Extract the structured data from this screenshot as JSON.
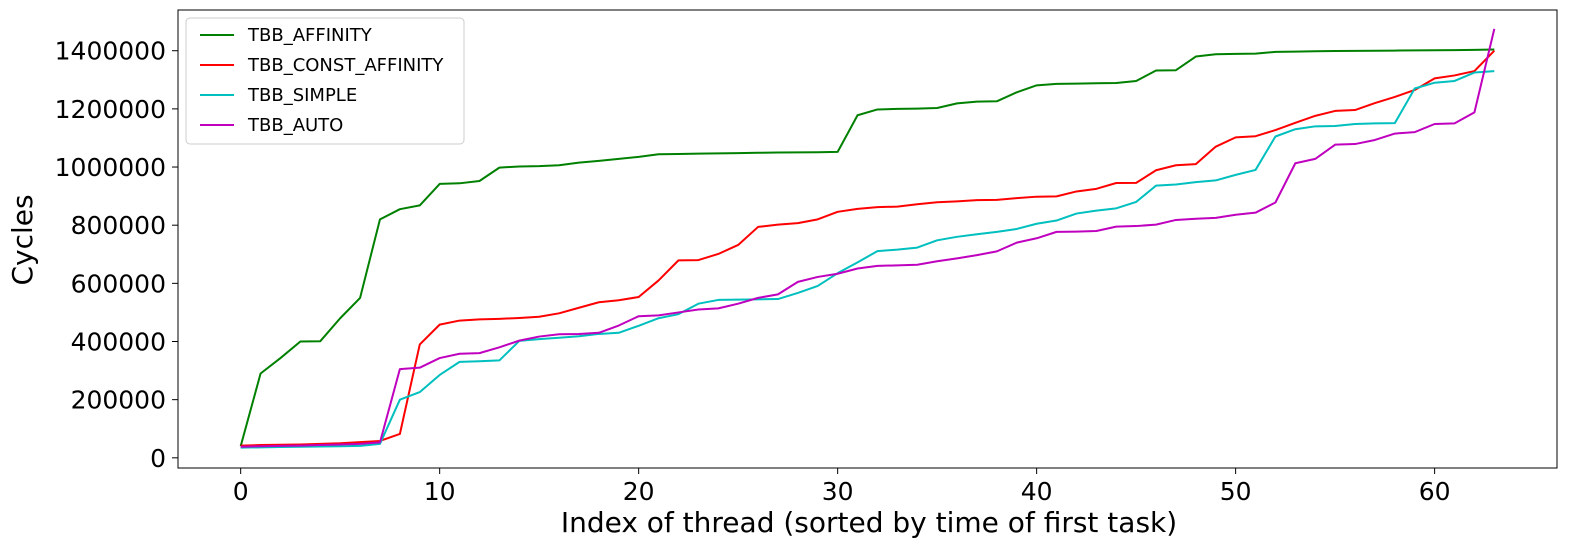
{
  "chart_data": {
    "type": "line",
    "title": "",
    "xlabel": "Index of thread (sorted by time of first task)",
    "ylabel": "Cycles",
    "xlim": [
      -3.15,
      66.15
    ],
    "ylim": [
      -35000,
      1540000
    ],
    "xticks": [
      0,
      10,
      20,
      30,
      40,
      50,
      60
    ],
    "yticks": [
      0,
      200000,
      400000,
      600000,
      800000,
      1000000,
      1200000,
      1400000
    ],
    "xtick_labels": [
      "0",
      "10",
      "20",
      "30",
      "40",
      "50",
      "60"
    ],
    "ytick_labels": [
      "0",
      "200000",
      "400000",
      "600000",
      "800000",
      "1000000",
      "1200000",
      "1400000"
    ],
    "grid": false,
    "legend_position": "upper-left",
    "x": [
      0,
      1,
      2,
      3,
      4,
      5,
      6,
      7,
      8,
      9,
      10,
      11,
      12,
      13,
      14,
      15,
      16,
      17,
      18,
      19,
      20,
      21,
      22,
      23,
      24,
      25,
      26,
      27,
      28,
      29,
      30,
      31,
      32,
      33,
      34,
      35,
      36,
      37,
      38,
      39,
      40,
      41,
      42,
      43,
      44,
      45,
      46,
      47,
      48,
      49,
      50,
      51,
      52,
      53,
      54,
      55,
      56,
      57,
      58,
      59,
      60,
      61,
      62,
      63
    ],
    "series": [
      {
        "name": "TBB_AFFINITY",
        "color": "#008000",
        "values": [
          40000,
          290000,
          343000,
          400000,
          401000,
          480000,
          550000,
          820000,
          855000,
          868000,
          942000,
          944000,
          952000,
          998000,
          1002000,
          1003000,
          1006000,
          1015000,
          1021000,
          1028000,
          1035000,
          1044000,
          1045000,
          1046000,
          1047000,
          1048000,
          1049000,
          1050000,
          1050500,
          1051000,
          1052000,
          1178000,
          1198000,
          1200000,
          1201000,
          1203000,
          1219000,
          1225000,
          1226000,
          1257000,
          1281000,
          1286000,
          1287000,
          1288000,
          1289000,
          1296000,
          1332000,
          1333000,
          1380000,
          1388000,
          1389000,
          1390000,
          1396000,
          1397000,
          1398000,
          1399000,
          1399500,
          1400000,
          1400500,
          1401000,
          1401500,
          1402000,
          1403000,
          1404000
        ]
      },
      {
        "name": "TBB_CONST_AFFINITY",
        "color": "#ff0000",
        "values": [
          42000,
          44000,
          45000,
          46000,
          48000,
          50000,
          54000,
          58000,
          82000,
          390000,
          458000,
          472000,
          476000,
          478000,
          481000,
          485000,
          497000,
          516000,
          535000,
          542000,
          553000,
          610000,
          679000,
          680000,
          701000,
          732000,
          794000,
          802000,
          807000,
          820000,
          846000,
          856000,
          862000,
          864000,
          872000,
          879000,
          882000,
          886000,
          887000,
          893000,
          898000,
          899000,
          916000,
          925000,
          945000,
          945500,
          989000,
          1006000,
          1010000,
          1070000,
          1102000,
          1106000,
          1127000,
          1152000,
          1176000,
          1193000,
          1196000,
          1220000,
          1241000,
          1265000,
          1305000,
          1315000,
          1330000,
          1400000
        ]
      },
      {
        "name": "TBB_SIMPLE",
        "color": "#00bfbf",
        "values": [
          35000,
          36000,
          37000,
          38000,
          39000,
          40000,
          41000,
          48000,
          200000,
          226000,
          285000,
          330000,
          332000,
          335000,
          402000,
          408000,
          413000,
          418000,
          426000,
          430000,
          454000,
          480000,
          494000,
          530000,
          543000,
          544000,
          545000,
          546000,
          567000,
          591000,
          635000,
          672000,
          711000,
          716000,
          723000,
          748000,
          760000,
          769000,
          777000,
          787000,
          805000,
          816000,
          840000,
          850000,
          858000,
          880000,
          936000,
          940000,
          948000,
          954000,
          973000,
          990000,
          1105000,
          1130000,
          1140000,
          1141000,
          1148000,
          1150000,
          1151000,
          1270000,
          1290000,
          1296000,
          1325000,
          1330000
        ]
      },
      {
        "name": "TBB_AUTO",
        "color": "#bf00bf",
        "values": [
          38000,
          40000,
          41000,
          42000,
          44000,
          46000,
          48000,
          53000,
          305000,
          310000,
          343000,
          358000,
          360000,
          380000,
          403000,
          417000,
          425000,
          426000,
          430000,
          455000,
          487000,
          490000,
          500000,
          510000,
          514000,
          530000,
          550000,
          562000,
          605000,
          622000,
          633000,
          651000,
          660000,
          662000,
          664000,
          676000,
          686000,
          697000,
          710000,
          740000,
          755000,
          777000,
          778000,
          780000,
          795000,
          797000,
          802000,
          818000,
          822000,
          825000,
          836000,
          843000,
          878000,
          1013000,
          1028000,
          1077000,
          1079000,
          1093000,
          1115000,
          1120000,
          1148000,
          1150000,
          1188000,
          1475000
        ]
      }
    ]
  }
}
